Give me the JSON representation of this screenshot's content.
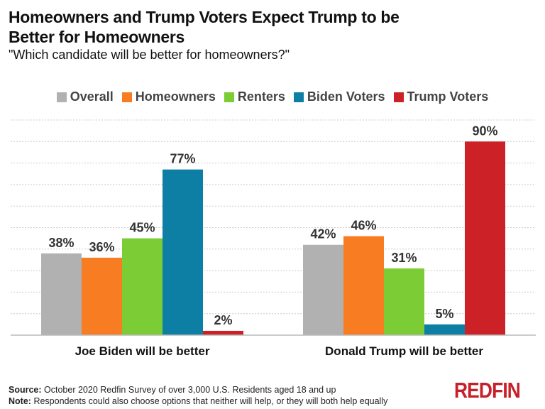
{
  "title": "Homeowners and Trump Voters Expect Trump to be Better for Homeowners",
  "subtitle": "\"Which candidate will be better for homeowners?\"",
  "chart_data": {
    "type": "bar",
    "categories": [
      "Joe Biden will be better",
      "Donald Trump will be better"
    ],
    "series": [
      {
        "name": "Overall",
        "color": "#b1b1b1",
        "values": [
          38,
          42
        ],
        "labels": [
          "38%",
          "42%"
        ]
      },
      {
        "name": "Homeowners",
        "color": "#f87d22",
        "values": [
          36,
          46
        ],
        "labels": [
          "36%",
          "46%"
        ]
      },
      {
        "name": "Renters",
        "color": "#7ccc35",
        "values": [
          45,
          31
        ],
        "labels": [
          "45%",
          "31%"
        ]
      },
      {
        "name": "Biden Voters",
        "color": "#0e7fa4",
        "values": [
          77,
          5
        ],
        "labels": [
          "77%",
          "5%"
        ]
      },
      {
        "name": "Trump Voters",
        "color": "#cc2127",
        "values": [
          2,
          90
        ],
        "labels": [
          "2%",
          "90%"
        ]
      }
    ],
    "ylim": [
      0,
      100
    ],
    "grid": true,
    "legend": "top"
  },
  "footer": {
    "source_label": "Source:",
    "source_text": "October 2020 Redfin Survey of over 3,000 U.S. Residents aged 18 and up",
    "note_label": "Note:",
    "note_text": "Respondents could also choose options that neither will help, or they will both help equally"
  },
  "logo": "REDFIN"
}
